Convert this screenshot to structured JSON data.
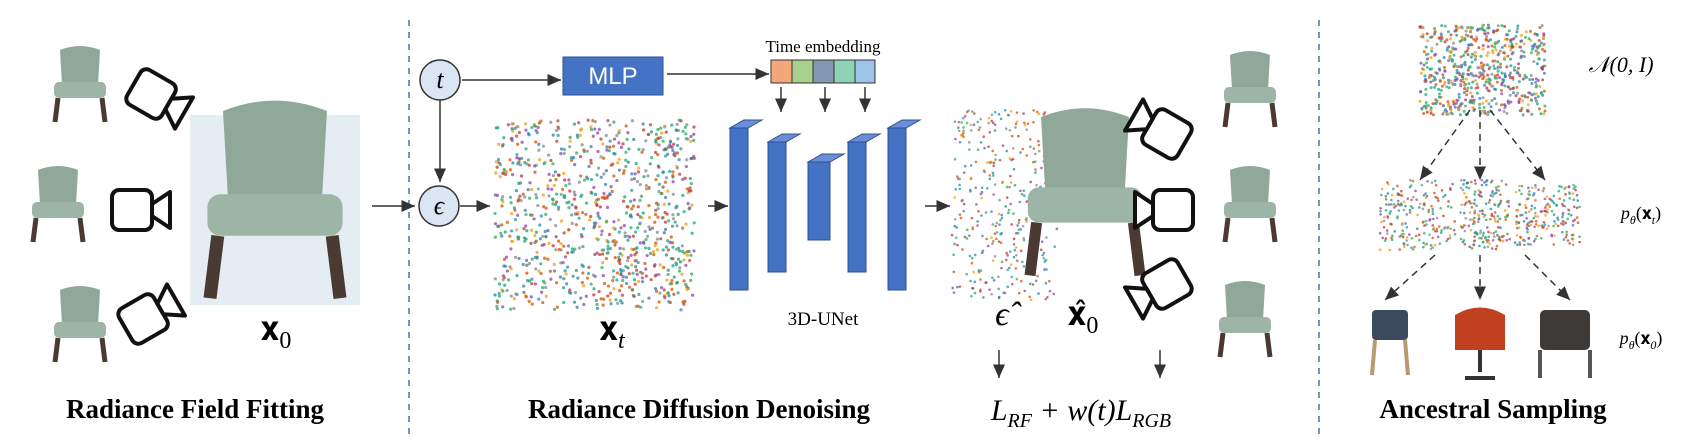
{
  "sections": {
    "fitting": "Radiance Field Fitting",
    "denoising": "Radiance Diffusion Denoising",
    "sampling": "Ancestral Sampling"
  },
  "nodes": {
    "t": "t",
    "epsilon": "ϵ",
    "mlp": "MLP",
    "time_embedding": "Time embedding",
    "unet": "3D-UNet"
  },
  "labels": {
    "x0": {
      "base": "𝐱",
      "sub": "0"
    },
    "xt": {
      "base": "𝐱",
      "sub": "t"
    },
    "eps_hat": "ϵ̂",
    "x0_hat": {
      "base": "𝐱̂",
      "sub": "0"
    },
    "loss": {
      "l1": "L",
      "s1": "RF",
      "mid": " + w(t)",
      "l2": "L",
      "s2": "RGB"
    },
    "normal": "𝒩(0, I)",
    "p_xt": {
      "base": "p",
      "sub": "θ",
      "arg": "(𝐱",
      "argsub": "t",
      "close": ")"
    },
    "p_x0": {
      "base": "p",
      "sub": "θ",
      "arg": "(𝐱",
      "argsub": "0",
      "close": ")"
    }
  }
}
